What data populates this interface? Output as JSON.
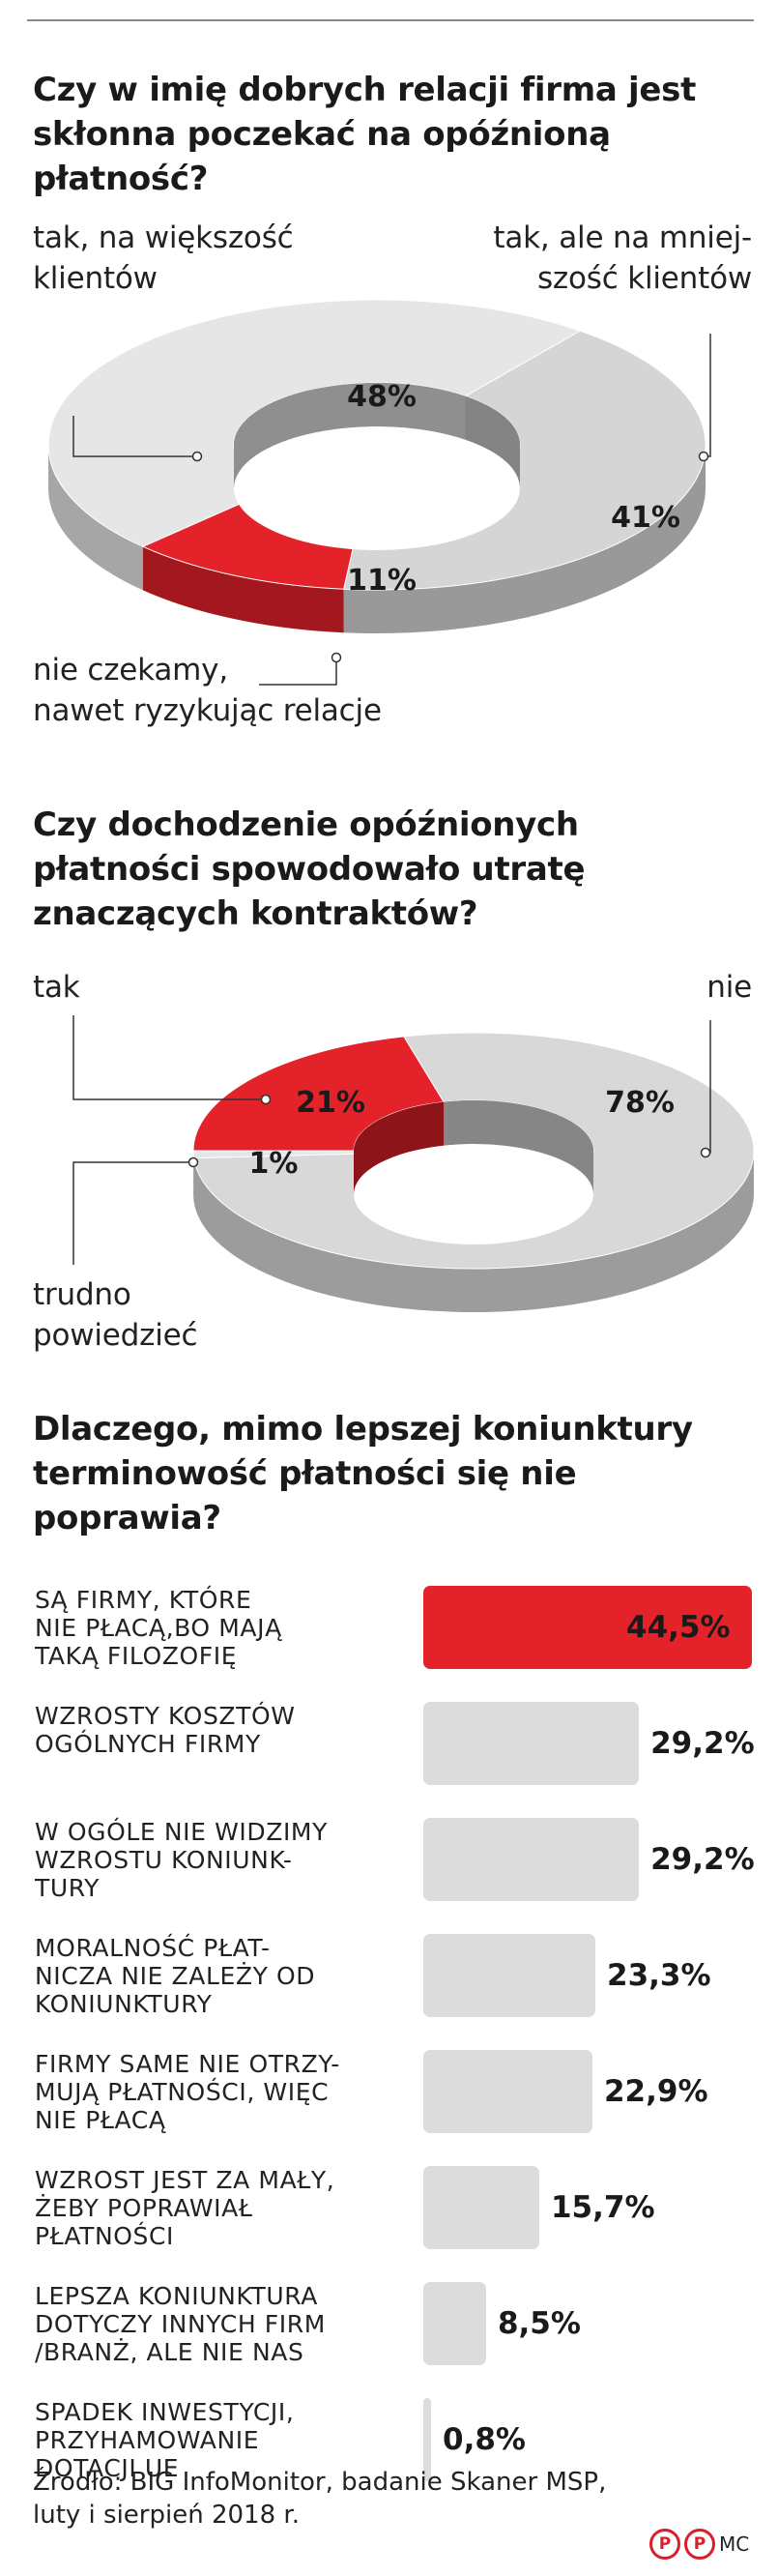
{
  "chart_data": [
    {
      "type": "pie",
      "title": "Czy w imię dobrych relacji firma jest skłonna poczekać na opóźnioną płatność?",
      "labels": [
        "tak, na większość klientów",
        "tak, ale na mniejszość klientów",
        "nie czekamy, nawet ryzykując relacje"
      ],
      "values": [
        48,
        41,
        11
      ],
      "value_labels": [
        "48%",
        "41%",
        "11%"
      ],
      "colors": [
        "#e6e6e6",
        "#d5d5d5",
        "#e3222a"
      ],
      "callouts": [
        "tak, na większość\nklientów",
        "tak, ale na mniej-\nszość klientów",
        "nie czekamy,\nnawet ryzykując relacje"
      ]
    },
    {
      "type": "pie",
      "title": "Czy dochodzenie opóźnionych płatności spowodowało utratę znaczących kontraktów?",
      "labels": [
        "tak",
        "nie",
        "trudno powiedzieć"
      ],
      "values": [
        21,
        78,
        1
      ],
      "value_labels": [
        "21%",
        "78%",
        "1%"
      ],
      "colors": [
        "#e3222a",
        "#d8d8d8",
        "#e6e6e6"
      ],
      "callouts": [
        "tak",
        "nie",
        "trudno\npowiedzieć"
      ]
    },
    {
      "type": "bar",
      "orientation": "horizontal",
      "title": "Dlaczego, mimo lepszej koniunktury terminowość płatności się nie poprawia?",
      "categories": [
        "SĄ FIRMY, KTÓRE NIE PŁACĄ,BO MAJĄ TAKĄ FILOZOFIĘ",
        "WZROSTY KOSZTÓW OGÓLNYCH FIRMY",
        "W OGÓLE NIE WIDZIMY WZROSTU KONIUNKTURY",
        "MORALNOŚĆ PŁATNICZA NIE ZALEŻY OD KONIUNKTURY",
        "FIRMY SAME NIE OTRZYMUJĄ PŁATNOŚCI, WIĘC NIE PŁACĄ",
        "WZROST JEST ZA MAŁY, ŻEBY POPRAWIAŁ PŁATNOŚCI",
        "LEPSZA KONIUNKTURA DOTYCZY INNYCH FIRM /BRANŻ, ALE NIE NAS",
        "SPADEK INWESTYCJI, PRZYHAMOWANIE DOTACJI UE"
      ],
      "category_lines": [
        [
          "SĄ FIRMY, KTÓRE",
          "NIE PŁACĄ,BO MAJĄ",
          "TAKĄ FILOZOFIĘ"
        ],
        [
          "WZROSTY KOSZTÓW",
          "OGÓLNYCH FIRMY"
        ],
        [
          "W OGÓLE NIE WIDZIMY",
          "WZROSTU KONIUNK-",
          "TURY"
        ],
        [
          "MORALNOŚĆ PŁAT-",
          "NICZA NIE ZALEŻY OD",
          "KONIUNKTURY"
        ],
        [
          "FIRMY SAME NIE OTRZY-",
          "MUJĄ PŁATNOŚCI, WIĘC",
          "NIE PŁACĄ"
        ],
        [
          "WZROST JEST ZA MAŁY,",
          "ŻEBY POPRAWIAŁ",
          "PŁATNOŚCI"
        ],
        [
          "LEPSZA KONIUNKTURA",
          "DOTYCZY INNYCH FIRM",
          "/BRANŻ, ALE NIE NAS"
        ],
        [
          "SPADEK INWESTYCJI,",
          "PRZYHAMOWANIE",
          "DOTACJI UE"
        ]
      ],
      "values": [
        44.5,
        29.2,
        29.2,
        23.3,
        22.9,
        15.7,
        8.5,
        0.8
      ],
      "value_labels": [
        "44,5%",
        "29,2%",
        "29,2%",
        "23,3%",
        "22,9%",
        "15,7%",
        "8,5%",
        "0,8%"
      ],
      "highlight_color": "#e3222a",
      "bar_color": "#dcdcdc",
      "xlim": [
        0,
        44.5
      ]
    }
  ],
  "source": {
    "line1": "Źródło: BIG InfoMonitor, badanie Skaner MSP,",
    "line2": "luty i sierpień 2018 r."
  },
  "credit": {
    "logo_glyph": "P",
    "initials": "MC"
  }
}
